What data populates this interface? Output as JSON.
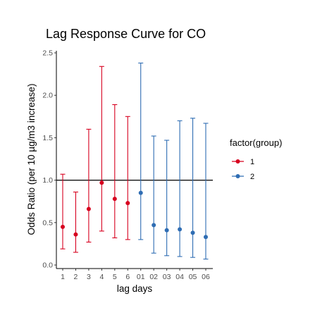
{
  "chart_data": {
    "type": "scatter",
    "title": "Lag Response Curve for CO",
    "xlabel": "lag days",
    "ylabel": "Odds Ratio (per 10 µg/m3 increase)",
    "categories": [
      "1",
      "2",
      "3",
      "4",
      "5",
      "6",
      "01",
      "02",
      "03",
      "04",
      "05",
      "06"
    ],
    "ylim": [
      0,
      2.5
    ],
    "yticks": [
      "0.0",
      "0.5",
      "1.0",
      "1.5",
      "2.0",
      "2.5"
    ],
    "reference_line": 1.0,
    "grid": false,
    "legend": {
      "title": "factor(group)",
      "position": "right",
      "entries": [
        {
          "label": "1",
          "color": "#d7001f"
        },
        {
          "label": "2",
          "color": "#2f6db3"
        }
      ]
    },
    "series": [
      {
        "name": "1",
        "color": "#d7001f",
        "x": [
          "1",
          "2",
          "3",
          "4",
          "5",
          "6"
        ],
        "values": [
          0.45,
          0.36,
          0.66,
          0.97,
          0.78,
          0.73
        ],
        "lower": [
          0.19,
          0.15,
          0.27,
          0.4,
          0.32,
          0.3
        ],
        "upper": [
          1.07,
          0.86,
          1.6,
          2.34,
          1.89,
          1.75
        ]
      },
      {
        "name": "2",
        "color": "#2f6db3",
        "x": [
          "01",
          "02",
          "03",
          "04",
          "05",
          "06"
        ],
        "values": [
          0.85,
          0.47,
          0.41,
          0.42,
          0.38,
          0.33
        ],
        "lower": [
          0.3,
          0.14,
          0.11,
          0.1,
          0.09,
          0.07
        ],
        "upper": [
          2.38,
          1.52,
          1.47,
          1.7,
          1.73,
          1.67
        ]
      }
    ]
  }
}
